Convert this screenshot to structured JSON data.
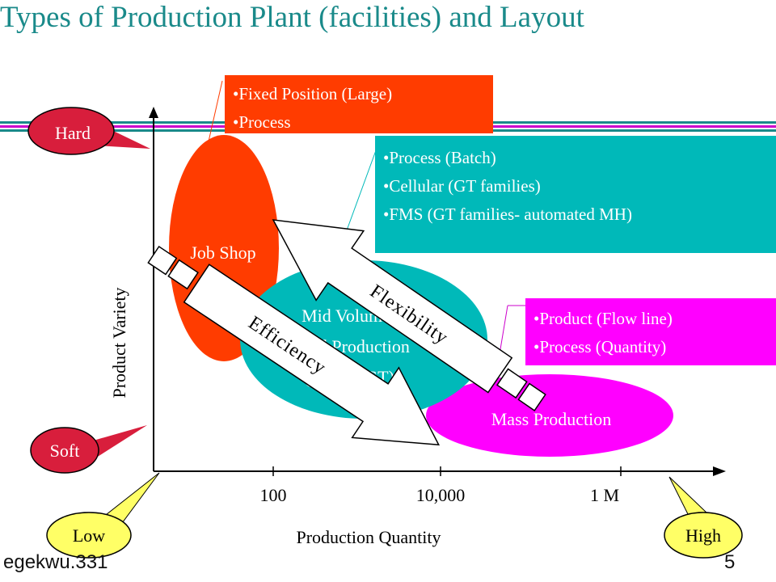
{
  "slide": {
    "title": "Types of  Production Plant (facilities) and Layout",
    "footer_left": "egekwu.331",
    "page_number": "5"
  },
  "colors": {
    "title": "#1a8a8a",
    "job_shop": "#ff3c00",
    "mid_volume": "#00b9b9",
    "mass_production": "#ff00ff",
    "callout_hard_soft": "#d81e3c",
    "callout_low_high": "#ffff66",
    "stripe_teal": "#1a8a8a",
    "stripe_magenta": "#cc00cc"
  },
  "boxes": {
    "fixed": [
      "Fixed Position (Large)",
      "Process"
    ],
    "process": [
      "Process (Batch)",
      "Cellular (GT families)",
      "FMS (GT families- automated MH)"
    ],
    "product": [
      "Product (Flow line)",
      "Process (Quantity)"
    ]
  },
  "chart": {
    "y_axis_label": "Product  Variety",
    "x_axis_label": "Production Quantity",
    "ticks": [
      "100",
      "10,000",
      "1 M"
    ],
    "regions": {
      "job_shop": "Job Shop",
      "mid_volume": [
        "Mid Volume",
        "and Production",
        "(Family GT)"
      ],
      "mass": "Mass Production"
    },
    "arrows": {
      "flexibility": "Flexibility",
      "efficiency": "Efficiency"
    }
  },
  "callouts": {
    "hard": "Hard",
    "soft": "Soft",
    "low": "Low",
    "high": "High"
  }
}
